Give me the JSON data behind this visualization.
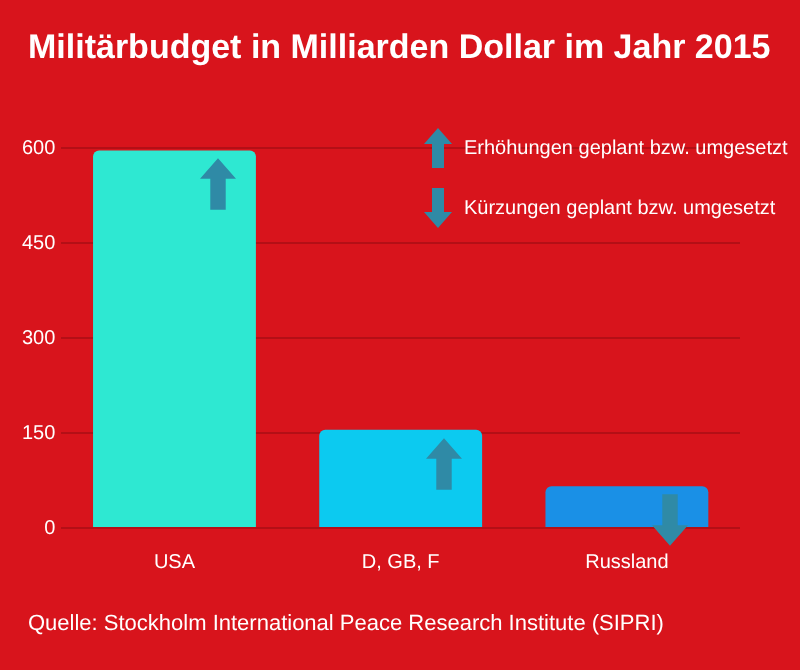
{
  "chart_data": {
    "type": "bar",
    "title": "Militärbudget in Milliarden Dollar im Jahr 2015",
    "categories": [
      "USA",
      "D, GB, F",
      "Russland"
    ],
    "values": [
      596,
      155,
      66
    ],
    "colors": [
      "#2ee8d2",
      "#0ccaf0",
      "#1a90e6"
    ],
    "ylim": [
      0,
      600
    ],
    "yticks": [
      0,
      150,
      300,
      450,
      600
    ],
    "grid": "y",
    "legend": false,
    "annotations": [
      "Erhöhungen geplant bzw. umgesetzt",
      "Kürzungen geplant bzw. umgesetzt",
      "Quelle: Stockholm International Peace Research Institute (SIPRI)"
    ]
  }
}
